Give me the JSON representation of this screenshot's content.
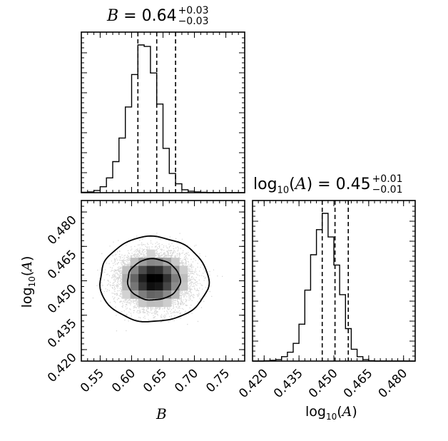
{
  "chart_data": [
    {
      "type": "histogram",
      "panel": "B marginal",
      "param": "B",
      "title": {
        "name": "B",
        "value": "0.64",
        "err_plus": "+0.03",
        "err_minus": "−0.03"
      },
      "xlim": [
        0.52,
        0.78
      ],
      "quantiles": [
        0.61,
        0.64,
        0.67
      ],
      "bin_edges": [
        0.52,
        0.53,
        0.54,
        0.55,
        0.56,
        0.57,
        0.58,
        0.59,
        0.6,
        0.61,
        0.62,
        0.63,
        0.64,
        0.65,
        0.66,
        0.67,
        0.68,
        0.69,
        0.7,
        0.71,
        0.72,
        0.73,
        0.74,
        0.75,
        0.76,
        0.77,
        0.78
      ],
      "counts": [
        0.3,
        0.5,
        1.5,
        4,
        10,
        21,
        37,
        58,
        80,
        100,
        99,
        81,
        60,
        30,
        13,
        6,
        2,
        1,
        0.5,
        0.3,
        0,
        0,
        0,
        0,
        0,
        0
      ]
    },
    {
      "type": "histogram2d",
      "panel": "joint B vs log10(A)",
      "xlabel": "B",
      "ylabel": "log10(A)",
      "xticks": [
        "0.55",
        "0.60",
        "0.65",
        "0.70",
        "0.75"
      ],
      "yticks": [
        "0.420",
        "0.435",
        "0.450",
        "0.465",
        "0.480"
      ],
      "xlim": [
        0.52,
        0.78
      ],
      "ylim": [
        0.415,
        0.485
      ],
      "center": [
        0.635,
        0.4505
      ],
      "sigma": [
        0.027,
        0.0058
      ],
      "contours": "1σ and 2σ levels",
      "n_scatter_points": 9000
    },
    {
      "type": "histogram",
      "panel": "log10(A) marginal",
      "param": "log10(A)",
      "title": {
        "name": "log10(A)",
        "value": "0.45",
        "err_plus": "+0.01",
        "err_minus": "−0.01"
      },
      "xlabel": "log10(A)",
      "xticks": [
        "0.420",
        "0.435",
        "0.450",
        "0.465",
        "0.480"
      ],
      "xlim": [
        0.415,
        0.485
      ],
      "quantiles": [
        0.445,
        0.4505,
        0.4562
      ],
      "bin_edges": [
        0.415,
        0.4175,
        0.42,
        0.4225,
        0.425,
        0.4275,
        0.43,
        0.4325,
        0.435,
        0.4375,
        0.44,
        0.4425,
        0.445,
        0.4475,
        0.45,
        0.4525,
        0.455,
        0.4575,
        0.46,
        0.4625,
        0.465,
        0.4675,
        0.47,
        0.4725,
        0.475,
        0.4775,
        0.48,
        0.4825,
        0.485
      ],
      "counts": [
        0,
        0,
        0.2,
        0.5,
        1,
        3,
        6,
        12,
        25,
        48,
        72,
        89,
        100,
        84,
        65,
        45,
        22,
        8,
        3,
        1,
        0.3,
        0,
        0,
        0,
        0,
        0,
        0,
        0
      ]
    }
  ],
  "labels": {
    "b_axis": "B",
    "loga_axis_base": "log",
    "loga_axis_sub": "10",
    "loga_axis_var": "A"
  }
}
